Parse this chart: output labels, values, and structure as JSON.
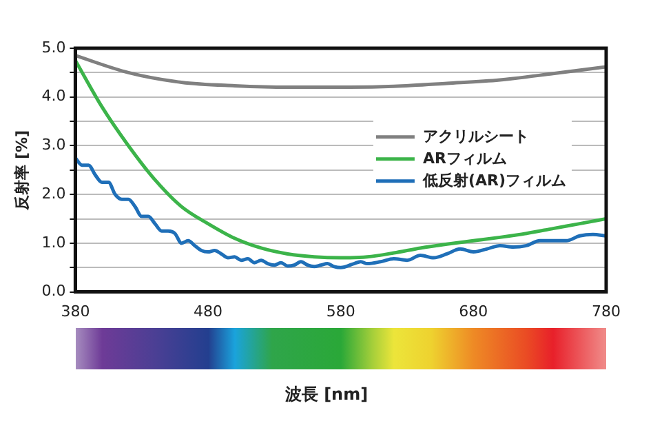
{
  "chart_data": {
    "type": "line",
    "xlabel": "波長 [nm]",
    "ylabel": "反射率 [%]",
    "xlim": [
      380,
      780
    ],
    "xticks": [
      380,
      480,
      580,
      680,
      780
    ],
    "ylim": [
      0,
      5
    ],
    "yticks": [
      {
        "value": 0,
        "label": "0.0"
      },
      {
        "value": 0.5,
        "label": null
      },
      {
        "value": 1,
        "label": "1.0"
      },
      {
        "value": 1.5,
        "label": null
      },
      {
        "value": 2,
        "label": "2.0"
      },
      {
        "value": 2.5,
        "label": null
      },
      {
        "value": 3,
        "label": "3.0"
      },
      {
        "value": 3.5,
        "label": null
      },
      {
        "value": 4,
        "label": "4.0"
      },
      {
        "value": 4.5,
        "label": null
      },
      {
        "value": 5,
        "label": "5.0"
      }
    ],
    "grid": "y",
    "legend": "right",
    "marker": "none",
    "line_style": "solid",
    "series": [
      {
        "name": "アクリルシート",
        "color": "#808080",
        "x": [
          380,
          420,
          460,
          500,
          540,
          580,
          620,
          660,
          700,
          740,
          780
        ],
        "values": [
          4.85,
          4.5,
          4.3,
          4.23,
          4.2,
          4.2,
          4.22,
          4.28,
          4.35,
          4.48,
          4.62
        ]
      },
      {
        "name": "ARフィルム",
        "color": "#3cb44a",
        "x": [
          380,
          400,
          420,
          440,
          460,
          480,
          500,
          520,
          540,
          560,
          580,
          600,
          620,
          640,
          660,
          680,
          700,
          720,
          740,
          760,
          780
        ],
        "values": [
          4.75,
          3.8,
          3.0,
          2.3,
          1.75,
          1.4,
          1.1,
          0.9,
          0.78,
          0.72,
          0.7,
          0.72,
          0.8,
          0.9,
          0.98,
          1.05,
          1.12,
          1.2,
          1.3,
          1.4,
          1.5
        ]
      },
      {
        "name": "低反射(AR)フィルム",
        "color": "#1f6fb8",
        "x": [
          380,
          385,
          390,
          395,
          400,
          405,
          410,
          415,
          420,
          425,
          430,
          435,
          440,
          445,
          450,
          455,
          460,
          465,
          470,
          475,
          480,
          485,
          490,
          495,
          500,
          505,
          510,
          515,
          520,
          525,
          530,
          535,
          540,
          545,
          550,
          555,
          560,
          565,
          570,
          575,
          580,
          590,
          595,
          600,
          610,
          620,
          630,
          640,
          650,
          660,
          670,
          680,
          690,
          700,
          710,
          720,
          730,
          740,
          750,
          760,
          770,
          780
        ],
        "values": [
          2.75,
          2.6,
          2.6,
          2.4,
          2.25,
          2.25,
          2.0,
          1.9,
          1.9,
          1.75,
          1.55,
          1.55,
          1.4,
          1.25,
          1.25,
          1.2,
          1.0,
          1.05,
          0.95,
          0.85,
          0.82,
          0.85,
          0.78,
          0.7,
          0.72,
          0.65,
          0.68,
          0.6,
          0.65,
          0.58,
          0.55,
          0.6,
          0.53,
          0.55,
          0.62,
          0.55,
          0.52,
          0.55,
          0.58,
          0.52,
          0.5,
          0.58,
          0.62,
          0.58,
          0.62,
          0.68,
          0.65,
          0.75,
          0.7,
          0.78,
          0.88,
          0.82,
          0.88,
          0.95,
          0.92,
          0.95,
          1.05,
          1.05,
          1.05,
          1.15,
          1.18,
          1.15
        ]
      }
    ]
  }
}
